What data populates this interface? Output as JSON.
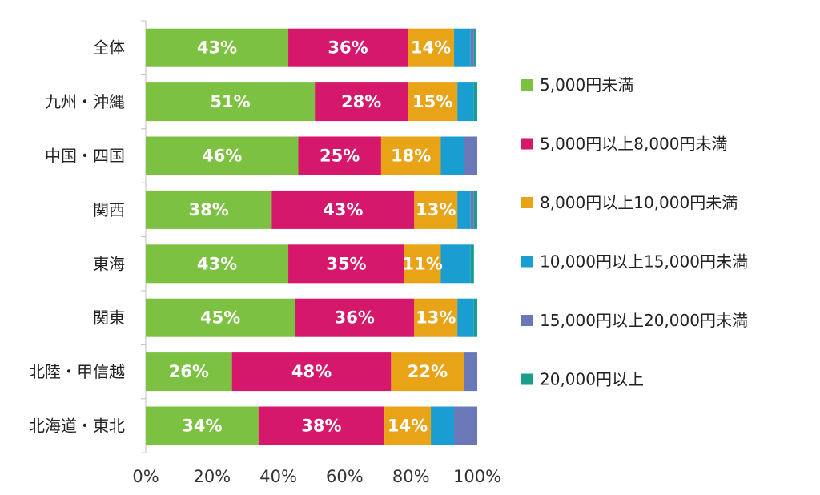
{
  "chart_data": {
    "type": "bar",
    "orientation": "horizontal",
    "stacked": true,
    "title": "",
    "xlabel": "",
    "ylabel": "",
    "xlim": [
      0,
      100
    ],
    "x_ticks": [
      "0%",
      "20%",
      "40%",
      "60%",
      "80%",
      "100%"
    ],
    "grid": false,
    "legend_position": "right",
    "categories": [
      "全体",
      "九州・沖縄",
      "中国・四国",
      "関西",
      "東海",
      "関東",
      "北陸・甲信越",
      "北海道・東北"
    ],
    "series": [
      {
        "name": "5,000円未満",
        "color": "#7dc142",
        "values": [
          43,
          51,
          46,
          38,
          43,
          45,
          26,
          34
        ],
        "labels": [
          "43%",
          "51%",
          "46%",
          "38%",
          "43%",
          "45%",
          "26%",
          "34%"
        ]
      },
      {
        "name": "5,000円以上8,000円未満",
        "color": "#d6186c",
        "values": [
          36,
          28,
          25,
          43,
          35,
          36,
          48,
          38
        ],
        "labels": [
          "36%",
          "28%",
          "25%",
          "43%",
          "35%",
          "36%",
          "48%",
          "38%"
        ]
      },
      {
        "name": "8,000円以上10,000円未満",
        "color": "#e8a317",
        "values": [
          14,
          15,
          18,
          13,
          11,
          13,
          22,
          14
        ],
        "labels": [
          "14%",
          "15%",
          "18%",
          "13%",
          "11%",
          "13%",
          "22%",
          "14%"
        ]
      },
      {
        "name": "10,000円以上15,000円未満",
        "color": "#1a9ed2",
        "values": [
          5,
          5,
          7,
          4,
          9,
          5,
          0,
          7
        ],
        "labels": []
      },
      {
        "name": "15,000円以上20,000円未満",
        "color": "#6b78b8",
        "values": [
          1,
          0,
          4,
          1,
          0,
          0,
          4,
          7
        ],
        "labels": []
      },
      {
        "name": "20,000円以上",
        "color": "#1a9e8a",
        "values": [
          0.5,
          1,
          0,
          1,
          1,
          1,
          0,
          0
        ],
        "labels": []
      }
    ]
  }
}
